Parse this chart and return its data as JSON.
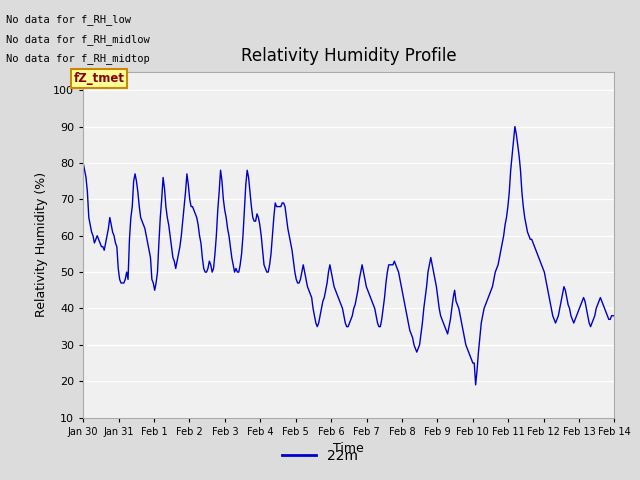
{
  "title": "Relativity Humidity Profile",
  "xlabel": "Time",
  "ylabel": "Relativity Humidity (%)",
  "legend_label": "22m",
  "line_color": "#0000CC",
  "ylim": [
    10,
    105
  ],
  "yticks": [
    10,
    20,
    30,
    40,
    50,
    60,
    70,
    80,
    90,
    100
  ],
  "bg_color": "#DCDCDC",
  "plot_bg_color": "#F0F0F0",
  "annotations_text": [
    "No data for f_RH_low",
    "No data for f_RH_midlow",
    "No data for f_RH_midtop"
  ],
  "annotation_box_text": "fZ_tmet",
  "x_tick_labels": [
    "Jan 30",
    "Jan 31",
    "Feb 1",
    "Feb 2",
    "Feb 3",
    "Feb 4",
    "Feb 5",
    "Feb 6",
    "Feb 7",
    "Feb 8",
    "Feb 9",
    "Feb 10",
    "Feb 11",
    "Feb 12",
    "Feb 13",
    "Feb 14"
  ],
  "rh_values": [
    80,
    78,
    76,
    72,
    65,
    63,
    61,
    60,
    58,
    59,
    60,
    59,
    58,
    57,
    57,
    56,
    58,
    60,
    62,
    65,
    63,
    61,
    60,
    58,
    57,
    51,
    48,
    47,
    47,
    47,
    48,
    50,
    48,
    59,
    65,
    68,
    75,
    77,
    75,
    72,
    68,
    65,
    64,
    63,
    62,
    60,
    58,
    56,
    54,
    48,
    47,
    45,
    47,
    50,
    58,
    65,
    70,
    76,
    73,
    68,
    65,
    63,
    60,
    57,
    54,
    53,
    51,
    53,
    55,
    57,
    60,
    64,
    68,
    72,
    77,
    74,
    70,
    68,
    68,
    67,
    66,
    65,
    63,
    60,
    58,
    54,
    51,
    50,
    50,
    51,
    53,
    52,
    50,
    51,
    55,
    60,
    67,
    72,
    78,
    75,
    70,
    67,
    65,
    62,
    60,
    57,
    54,
    52,
    50,
    51,
    50,
    50,
    52,
    55,
    60,
    67,
    74,
    78,
    76,
    72,
    68,
    65,
    64,
    64,
    66,
    65,
    63,
    60,
    56,
    52,
    51,
    50,
    50,
    52,
    55,
    60,
    65,
    69,
    68,
    68,
    68,
    68,
    69,
    69,
    68,
    65,
    62,
    60,
    58,
    56,
    53,
    50,
    48,
    47,
    47,
    48,
    50,
    52,
    50,
    48,
    46,
    45,
    44,
    43,
    40,
    38,
    36,
    35,
    36,
    38,
    40,
    42,
    43,
    45,
    47,
    50,
    52,
    50,
    48,
    46,
    45,
    44,
    43,
    42,
    41,
    40,
    38,
    36,
    35,
    35,
    36,
    37,
    38,
    40,
    41,
    43,
    45,
    48,
    50,
    52,
    50,
    48,
    46,
    45,
    44,
    43,
    42,
    41,
    40,
    38,
    36,
    35,
    35,
    37,
    40,
    43,
    47,
    50,
    52,
    52,
    52,
    52,
    53,
    52,
    51,
    50,
    48,
    46,
    44,
    42,
    40,
    38,
    36,
    34,
    33,
    32,
    30,
    29,
    28,
    29,
    30,
    33,
    36,
    40,
    43,
    46,
    50,
    52,
    54,
    52,
    50,
    48,
    46,
    43,
    40,
    38,
    37,
    36,
    35,
    34,
    33,
    35,
    37,
    40,
    43,
    45,
    42,
    41,
    40,
    38,
    36,
    34,
    32,
    30,
    29,
    28,
    27,
    26,
    25,
    25,
    19,
    23,
    28,
    32,
    36,
    38,
    40,
    41,
    42,
    43,
    44,
    45,
    46,
    48,
    50,
    51,
    52,
    54,
    56,
    58,
    60,
    63,
    65,
    68,
    72,
    78,
    82,
    86,
    90,
    88,
    85,
    82,
    78,
    72,
    68,
    65,
    63,
    61,
    60,
    59,
    59,
    58,
    57,
    56,
    55,
    54,
    53,
    52,
    51,
    50,
    48,
    46,
    44,
    42,
    40,
    38,
    37,
    36,
    37,
    38,
    40,
    42,
    44,
    46,
    45,
    43,
    41,
    40,
    38,
    37,
    36,
    37,
    38,
    39,
    40,
    41,
    42,
    43,
    42,
    40,
    38,
    36,
    35,
    36,
    37,
    38,
    40,
    41,
    42,
    43,
    42,
    41,
    40,
    39,
    38,
    37,
    37,
    38,
    38,
    38
  ]
}
